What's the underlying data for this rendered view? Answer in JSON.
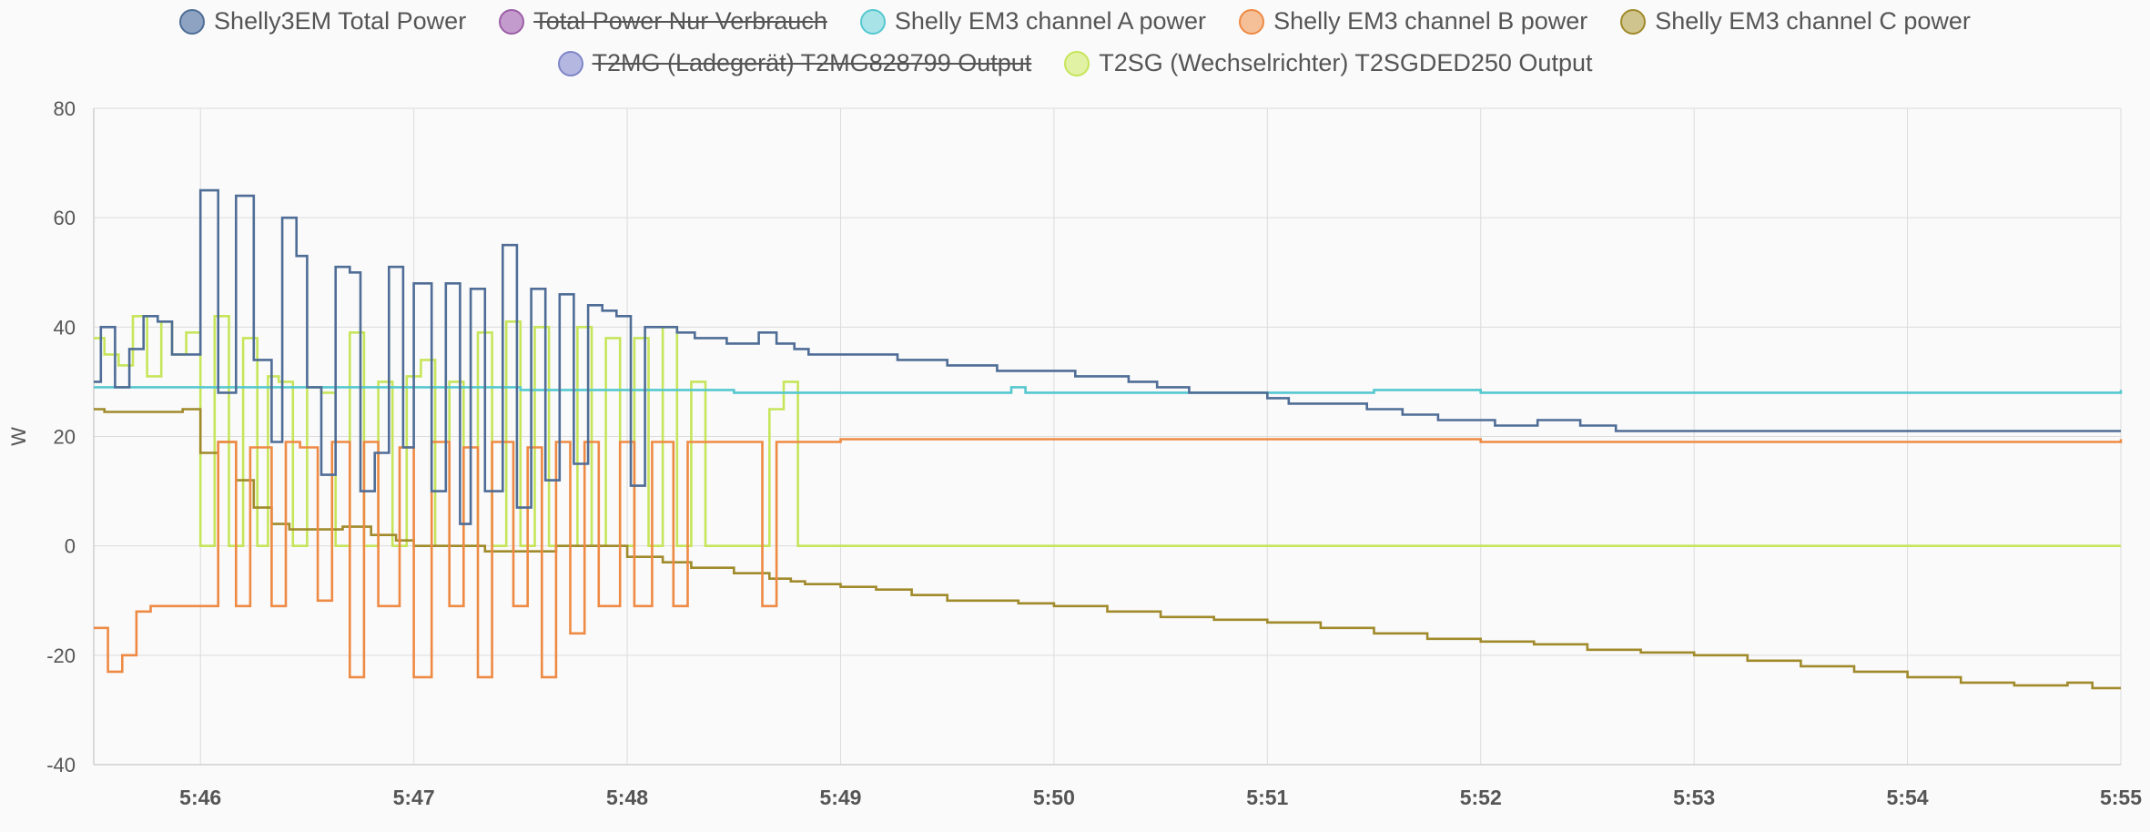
{
  "chart_data": {
    "type": "line",
    "ylabel": "W",
    "ylim": [
      -40,
      80
    ],
    "yticks": [
      80,
      60,
      40,
      20,
      0,
      -20,
      -40
    ],
    "xlim": [
      "5:45:30",
      "5:55:00"
    ],
    "xticks": [
      "5:46",
      "5:47",
      "5:48",
      "5:49",
      "5:50",
      "5:51",
      "5:52",
      "5:53",
      "5:54",
      "5:55"
    ],
    "grid": true,
    "legend": "top",
    "step": true,
    "series": [
      {
        "name": "Shelly3EM Total Power",
        "color": "#4f6d96",
        "fill": "#8ea3c2",
        "hidden": false,
        "x": [
          "5:45:30",
          "5:45:32",
          "5:45:36",
          "5:45:40",
          "5:45:44",
          "5:45:48",
          "5:45:52",
          "5:46:00",
          "5:46:05",
          "5:46:10",
          "5:46:15",
          "5:46:20",
          "5:46:23",
          "5:46:27",
          "5:46:30",
          "5:46:34",
          "5:46:38",
          "5:46:42",
          "5:46:45",
          "5:46:49",
          "5:46:53",
          "5:46:57",
          "5:47:00",
          "5:47:05",
          "5:47:09",
          "5:47:13",
          "5:47:16",
          "5:47:20",
          "5:47:25",
          "5:47:29",
          "5:47:33",
          "5:47:37",
          "5:47:41",
          "5:47:45",
          "5:47:49",
          "5:47:53",
          "5:47:57",
          "5:48:01",
          "5:48:05",
          "5:48:10",
          "5:48:14",
          "5:48:19",
          "5:48:28",
          "5:48:37",
          "5:48:42",
          "5:48:47",
          "5:48:51",
          "5:49:16",
          "5:49:30",
          "5:49:44",
          "5:49:58",
          "5:50:06",
          "5:50:15",
          "5:50:21",
          "5:50:29",
          "5:50:38",
          "5:50:47",
          "5:51:00",
          "5:51:06",
          "5:51:15",
          "5:51:28",
          "5:51:38",
          "5:51:48",
          "5:52:04",
          "5:52:16",
          "5:52:28",
          "5:52:38",
          "5:52:50",
          "5:52:55",
          "5:53:00",
          "5:53:08",
          "5:53:16",
          "5:53:22",
          "5:53:30",
          "5:53:38",
          "5:53:50",
          "5:54:00",
          "5:54:10",
          "5:54:18",
          "5:54:26",
          "5:54:34",
          "5:54:44",
          "5:54:55"
        ],
        "y": [
          30,
          40,
          29,
          36,
          42,
          41,
          35,
          65,
          28,
          64,
          34,
          19,
          60,
          53,
          29,
          13,
          51,
          50,
          10,
          17,
          51,
          18,
          48,
          10,
          48,
          4,
          47,
          10,
          55,
          7,
          47,
          12,
          46,
          15,
          44,
          43,
          42,
          11,
          40,
          40,
          39,
          38,
          37,
          39,
          37,
          36,
          35,
          34,
          33,
          32,
          32,
          31,
          31,
          30,
          29,
          28,
          28,
          27,
          26,
          26,
          25,
          24,
          23,
          22,
          23,
          22,
          21,
          21,
          21,
          21,
          21,
          21,
          21,
          21,
          21,
          21,
          21,
          21,
          21,
          21,
          21,
          21,
          21
        ]
      },
      {
        "name": "Total Power Nur Verbrauch",
        "color": "#9c5fa8",
        "fill": "#c39bcc",
        "hidden": true,
        "x": [],
        "y": []
      },
      {
        "name": "Shelly EM3 channel A power",
        "color": "#56c8d0",
        "fill": "#a8e3e7",
        "hidden": false,
        "x": [
          "5:45:30",
          "5:46:00",
          "5:46:30",
          "5:47:00",
          "5:47:30",
          "5:48:00",
          "5:48:30",
          "5:49:00",
          "5:49:30",
          "5:49:48",
          "5:49:52",
          "5:50:10",
          "5:51:00",
          "5:51:30",
          "5:52:00",
          "5:52:30",
          "5:53:00",
          "5:53:30",
          "5:54:00",
          "5:54:30",
          "5:55:00"
        ],
        "y": [
          29,
          29,
          29,
          29,
          28.5,
          28.5,
          28,
          28,
          28,
          29,
          28,
          28,
          28,
          28.5,
          28,
          28,
          28,
          28,
          28,
          28,
          28.5
        ]
      },
      {
        "name": "Shelly EM3 channel B power",
        "color": "#ee8a44",
        "fill": "#f5bf98",
        "hidden": false,
        "x": [
          "5:45:30",
          "5:45:34",
          "5:45:38",
          "5:45:42",
          "5:45:46",
          "5:45:50",
          "5:46:00",
          "5:46:05",
          "5:46:10",
          "5:46:14",
          "5:46:20",
          "5:46:24",
          "5:46:28",
          "5:46:33",
          "5:46:37",
          "5:46:42",
          "5:46:46",
          "5:46:50",
          "5:46:56",
          "5:47:00",
          "5:47:05",
          "5:47:10",
          "5:47:14",
          "5:47:18",
          "5:47:22",
          "5:47:28",
          "5:47:32",
          "5:47:36",
          "5:47:40",
          "5:47:44",
          "5:47:48",
          "5:47:52",
          "5:47:58",
          "5:48:02",
          "5:48:07",
          "5:48:13",
          "5:48:17",
          "5:48:21",
          "5:48:38",
          "5:48:42",
          "5:48:46",
          "5:49:00",
          "5:51:00",
          "5:52:00",
          "5:53:00",
          "5:54:00",
          "5:55:00"
        ],
        "y": [
          -15,
          -23,
          -20,
          -12,
          -11,
          -11,
          -11,
          19,
          -11,
          18,
          -11,
          19,
          18,
          -10,
          19,
          -24,
          19,
          -11,
          18,
          -24,
          19,
          -11,
          18,
          -24,
          19,
          -11,
          18,
          -24,
          19,
          -16,
          19,
          -11,
          19,
          -11,
          19,
          -11,
          19,
          19,
          -11,
          19,
          19,
          19.5,
          19.5,
          19,
          19,
          19,
          19.5
        ]
      },
      {
        "name": "Shelly EM3 channel C power",
        "color": "#a08a2b",
        "fill": "#cfc48e",
        "hidden": false,
        "x": [
          "5:45:30",
          "5:45:33",
          "5:45:45",
          "5:45:55",
          "5:46:00",
          "5:46:05",
          "5:46:10",
          "5:46:15",
          "5:46:20",
          "5:46:25",
          "5:46:30",
          "5:46:40",
          "5:46:48",
          "5:46:55",
          "5:47:00",
          "5:47:20",
          "5:47:40",
          "5:48:00",
          "5:48:10",
          "5:48:15",
          "5:48:18",
          "5:48:30",
          "5:48:40",
          "5:48:46",
          "5:48:50",
          "5:49:00",
          "5:49:10",
          "5:49:20",
          "5:49:30",
          "5:49:50",
          "5:50:00",
          "5:50:15",
          "5:50:30",
          "5:50:45",
          "5:51:00",
          "5:51:15",
          "5:51:30",
          "5:51:45",
          "5:52:00",
          "5:52:15",
          "5:52:30",
          "5:52:45",
          "5:53:00",
          "5:53:15",
          "5:53:30",
          "5:53:45",
          "5:54:00",
          "5:54:15",
          "5:54:30",
          "5:54:45",
          "5:54:52",
          "5:55:00"
        ],
        "y": [
          25,
          24.5,
          24.5,
          25,
          17,
          19,
          12,
          7,
          4,
          3,
          3,
          3.5,
          2,
          1,
          0,
          -1,
          0,
          -2,
          -3,
          -3,
          -4,
          -5,
          -6,
          -6.5,
          -7,
          -7.5,
          -8,
          -9,
          -10,
          -10.5,
          -11,
          -12,
          -13,
          -13.5,
          -14,
          -15,
          -16,
          -17,
          -17.5,
          -18,
          -19,
          -19.5,
          -20,
          -21,
          -22,
          -23,
          -24,
          -25,
          -25.5,
          -25,
          -26,
          -26
        ]
      },
      {
        "name": "T2MG (Ladegerät) T2MG828799 Output",
        "color": "#7f86c9",
        "fill": "#b4b7e0",
        "hidden": true,
        "x": [],
        "y": []
      },
      {
        "name": "T2SG (Wechselrichter) T2SGDED250 Output",
        "color": "#c6e55a",
        "fill": "#e1f2a5",
        "hidden": false,
        "x": [
          "5:45:30",
          "5:45:33",
          "5:45:37",
          "5:45:41",
          "5:45:45",
          "5:45:49",
          "5:45:52",
          "5:45:56",
          "5:46:00",
          "5:46:04",
          "5:46:08",
          "5:46:12",
          "5:46:16",
          "5:46:19",
          "5:46:22",
          "5:46:26",
          "5:46:30",
          "5:46:34",
          "5:46:38",
          "5:46:42",
          "5:46:46",
          "5:46:50",
          "5:46:54",
          "5:46:58",
          "5:47:02",
          "5:47:06",
          "5:47:10",
          "5:47:14",
          "5:47:18",
          "5:47:22",
          "5:47:26",
          "5:47:30",
          "5:47:34",
          "5:47:38",
          "5:47:42",
          "5:47:46",
          "5:47:50",
          "5:47:54",
          "5:47:58",
          "5:48:02",
          "5:48:06",
          "5:48:10",
          "5:48:14",
          "5:48:18",
          "5:48:22",
          "5:48:36",
          "5:48:40",
          "5:48:44",
          "5:48:48",
          "5:55:00"
        ],
        "y": [
          38,
          35,
          33,
          42,
          31,
          41,
          35,
          39,
          0,
          42,
          0,
          38,
          0,
          31,
          30,
          0,
          29,
          28,
          0,
          39,
          0,
          30,
          0,
          31,
          34,
          0,
          30,
          0,
          39,
          0,
          41,
          0,
          40,
          0,
          0,
          40,
          0,
          38,
          0,
          38,
          0,
          40,
          0,
          30,
          0,
          0,
          25,
          30,
          0,
          0
        ]
      }
    ]
  }
}
